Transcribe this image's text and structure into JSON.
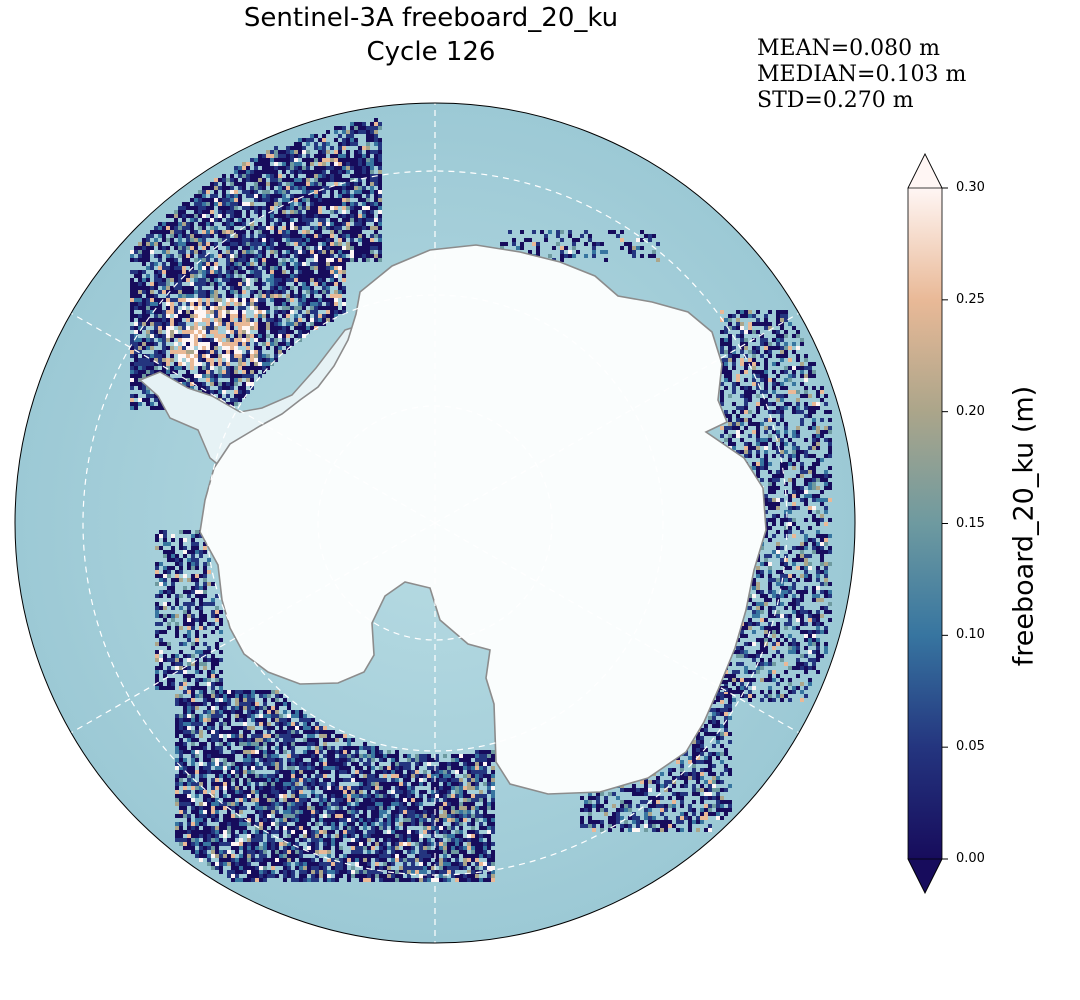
{
  "title": {
    "line1": "Sentinel-3A freeboard_20_ku",
    "line2": "Cycle 126"
  },
  "stats": {
    "mean": "MEAN=0.080 m",
    "median": "MEDIAN=0.103 m",
    "std": "STD=0.270 m"
  },
  "colorbar": {
    "label": "freeboard_20_ku (m)",
    "ticks": [
      "0.00",
      "0.05",
      "0.10",
      "0.15",
      "0.20",
      "0.25",
      "0.30"
    ],
    "tick_values": [
      0.0,
      0.05,
      0.1,
      0.15,
      0.2,
      0.25,
      0.3
    ],
    "range": [
      0.0,
      0.3
    ],
    "extend": "both",
    "colors": [
      "#170c5c",
      "#24357f",
      "#3775a0",
      "#6e9aa0",
      "#aba58a",
      "#e9b997",
      "#fff6f4"
    ]
  },
  "map": {
    "projection": "south-polar-stereographic",
    "ocean_color": "#9fcbd6",
    "land_color": "#ffffff",
    "coastline_color": "#8a8a8a",
    "gridlines": "dashed-white"
  }
}
